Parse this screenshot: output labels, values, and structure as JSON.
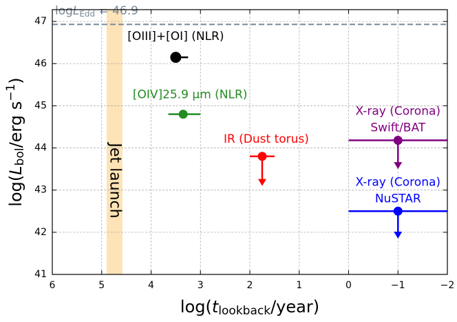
{
  "chart_data": {
    "type": "scatter",
    "xlabel": [
      "log(",
      "t",
      "lookback",
      "/year)"
    ],
    "ylabel": [
      "log(",
      "L",
      "bol",
      "/erg s",
      "−1",
      ")"
    ],
    "xlim": [
      6,
      -2
    ],
    "ylim": [
      41,
      47.28
    ],
    "xticks": [
      6,
      5,
      4,
      3,
      2,
      1,
      0,
      {
        "value": -1,
        "label": "−1"
      },
      {
        "value": -2,
        "label": "−2"
      }
    ],
    "yticks": [
      41,
      42,
      43,
      44,
      45,
      46,
      47
    ],
    "grid": true,
    "edd": {
      "label": [
        "log",
        "L",
        "Edd",
        " = 46.9"
      ],
      "value": 46.93,
      "color": "#778899"
    },
    "band": {
      "label": "Jet launch",
      "x": [
        4.9,
        4.58
      ],
      "color": "#fde3b6"
    },
    "series": [
      {
        "name": [
          "[OIII]+[OI] (NLR)"
        ],
        "color": "#000000",
        "x": 3.5,
        "y": 46.15,
        "xerr": [
          0.1,
          0.25
        ],
        "limit": null
      },
      {
        "name": [
          "[OIV]25.9 μm (NLR)"
        ],
        "color": "#228b22",
        "x": 3.35,
        "y": 44.8,
        "xerr": [
          0.3,
          0.35
        ],
        "limit": null
      },
      {
        "name": [
          "IR (Dust torus)"
        ],
        "color": "#ff0000",
        "x": 1.75,
        "y": 43.8,
        "xerr": [
          0.25,
          0.25
        ],
        "limit": 43.1
      },
      {
        "name": [
          "X-ray (Corona)",
          "Swift/BAT"
        ],
        "color": "#800080",
        "x": -1,
        "y": 44.18,
        "xerr": [
          1,
          1
        ],
        "limit": 43.5
      },
      {
        "name": [
          "X-ray (Corona)",
          "NuSTAR"
        ],
        "color": "#0000ff",
        "x": -1,
        "y": 42.5,
        "xerr": [
          1,
          1
        ],
        "limit": 41.85
      }
    ]
  }
}
